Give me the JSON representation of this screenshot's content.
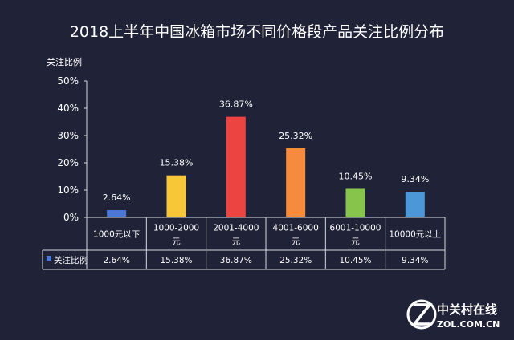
{
  "chart_data": {
    "type": "bar",
    "title": "2018上半年中国冰箱市场不同价格段产品关注比例分布",
    "ylabel": "关注比例",
    "ylim": [
      0,
      50
    ],
    "yticks": [
      "0%",
      "10%",
      "20%",
      "30%",
      "40%",
      "50%"
    ],
    "categories": [
      [
        "1000元以下"
      ],
      [
        "1000-2000",
        "元"
      ],
      [
        "2001-4000",
        "元"
      ],
      [
        "4001-6000",
        "元"
      ],
      [
        "6001-10000",
        "元"
      ],
      [
        "10000元以上"
      ]
    ],
    "values": [
      2.64,
      15.38,
      36.87,
      25.32,
      10.45,
      9.34
    ],
    "value_labels": [
      "2.64%",
      "15.38%",
      "36.87%",
      "25.32%",
      "10.45%",
      "9.34%"
    ],
    "colors": [
      "#4a78d6",
      "#f7c737",
      "#ec4441",
      "#f58b3c",
      "#86c44c",
      "#4b97d8"
    ],
    "table": {
      "legend_label": "关注比例",
      "legend_color": "#4a78d6",
      "row": [
        "2.64%",
        "15.38%",
        "36.87%",
        "25.32%",
        "10.45%",
        "9.34%"
      ]
    },
    "grid": false,
    "legend": "table"
  },
  "watermark": {
    "cn": "中关村在线",
    "en": "ZOL.COM.CN"
  }
}
